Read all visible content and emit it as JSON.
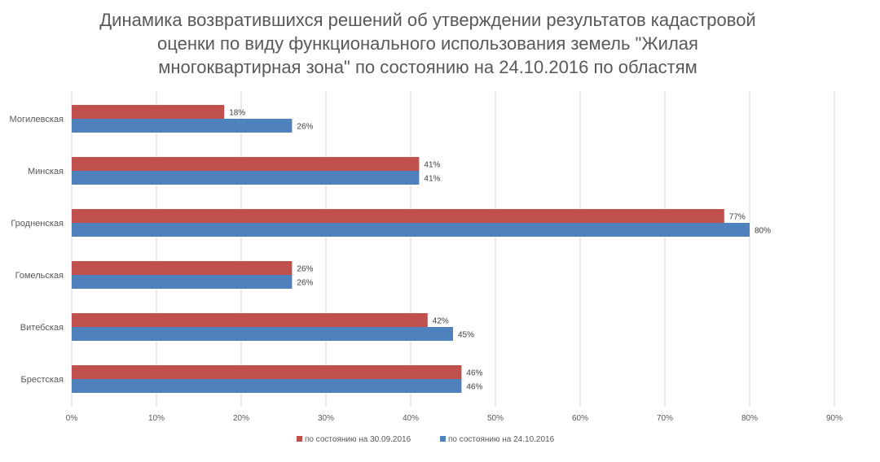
{
  "chart_data": {
    "type": "bar",
    "orientation": "horizontal",
    "title_lines": [
      "Динамика возвратившихся решений об утверждении результатов кадастровой",
      "оценки по виду функционального использования земель \"Жилая",
      "многоквартирная зона\" по состоянию на 24.10.2016 по областям"
    ],
    "categories": [
      "Могилевская",
      "Минская",
      "Гродненская",
      "Гомельская",
      "Витебская",
      "Брестская"
    ],
    "series": [
      {
        "name": "по состоянию на 30.09.2016",
        "color": "#c0504d",
        "values": [
          18,
          41,
          77,
          26,
          42,
          46
        ],
        "labels": [
          "18%",
          "41%",
          "77%",
          "26%",
          "42%",
          "46%"
        ]
      },
      {
        "name": "по состоянию на 24.10.2016",
        "color": "#4f81bd",
        "values": [
          26,
          41,
          80,
          26,
          45,
          46
        ],
        "labels": [
          "26%",
          "41%",
          "80%",
          "26%",
          "45%",
          "46%"
        ]
      }
    ],
    "xlim": [
      0,
      90
    ],
    "xticks": [
      "0%",
      "10%",
      "20%",
      "30%",
      "40%",
      "50%",
      "60%",
      "70%",
      "80%",
      "90%"
    ],
    "grid": true,
    "legend_position": "bottom",
    "xlabel": "",
    "ylabel": ""
  }
}
